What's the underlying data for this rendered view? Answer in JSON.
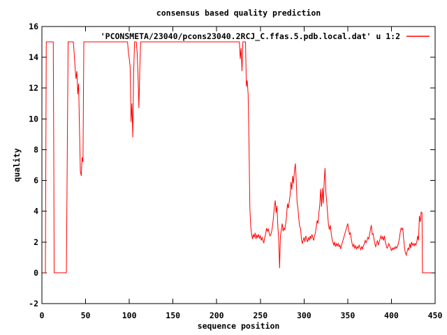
{
  "chart_data": {
    "type": "line",
    "title": "consensus based quality prediction",
    "xlabel": "sequence position",
    "ylabel": "quality",
    "legend": "'PCONSMETA/23040/pcons23040.2RCJ_C.ffas.5.pdb.local.dat' u 1:2",
    "legend_position": "top-right-inside",
    "grid": false,
    "xlim": [
      0,
      450
    ],
    "ylim": [
      -2,
      16
    ],
    "x_ticks": [
      0,
      50,
      100,
      150,
      200,
      250,
      300,
      350,
      400,
      450
    ],
    "y_ticks": [
      -2,
      0,
      2,
      4,
      6,
      8,
      10,
      12,
      14,
      16
    ],
    "line_color": "#ff0000",
    "axis_color": "#000000",
    "background_color": "#ffffff",
    "series": [
      {
        "name": "'PCONSMETA/23040/pcons23040.2RCJ_C.ffas.5.pdb.local.dat' u 1:2",
        "points": [
          [
            1,
            0
          ],
          [
            4,
            0
          ],
          [
            5,
            15
          ],
          [
            13,
            15
          ],
          [
            13.6,
            7.4
          ],
          [
            14,
            0
          ],
          [
            28,
            0
          ],
          [
            29,
            7.5
          ],
          [
            30,
            15
          ],
          [
            36,
            15
          ],
          [
            37,
            14.2
          ],
          [
            38,
            13.3
          ],
          [
            39,
            12.6
          ],
          [
            40,
            13.1
          ],
          [
            41,
            11.6
          ],
          [
            42,
            12.3
          ],
          [
            43,
            9.4
          ],
          [
            44,
            6.6
          ],
          [
            45,
            6.3
          ],
          [
            46,
            7.5
          ],
          [
            47,
            7.2
          ],
          [
            48,
            15
          ],
          [
            98,
            15
          ],
          [
            99,
            14.3
          ],
          [
            100,
            13.9
          ],
          [
            101,
            13.4
          ],
          [
            102,
            9.8
          ],
          [
            103,
            11
          ],
          [
            104,
            8.8
          ],
          [
            105,
            13
          ],
          [
            106,
            15
          ],
          [
            108,
            15
          ],
          [
            109,
            14.3
          ],
          [
            110,
            12.8
          ],
          [
            111,
            10.7
          ],
          [
            112,
            13.2
          ],
          [
            113,
            15
          ],
          [
            226,
            15
          ],
          [
            227,
            13.9
          ],
          [
            228,
            14.6
          ],
          [
            229,
            13.1
          ],
          [
            230,
            15
          ],
          [
            233,
            15
          ],
          [
            234,
            12.1
          ],
          [
            235,
            12.5
          ],
          [
            236,
            11.6
          ],
          [
            237,
            8.4
          ],
          [
            238,
            4.2
          ],
          [
            239,
            3
          ],
          [
            240,
            2.5
          ],
          [
            241,
            2.2
          ],
          [
            242,
            2.5
          ],
          [
            243,
            2.3
          ],
          [
            244,
            2.6
          ],
          [
            245,
            2.2
          ],
          [
            246,
            2.45
          ],
          [
            247,
            2.3
          ],
          [
            248,
            2.5
          ],
          [
            249,
            2.25
          ],
          [
            250,
            2.4
          ],
          [
            251,
            2.1
          ],
          [
            252,
            2.3
          ],
          [
            253,
            2.1
          ],
          [
            254,
            1.95
          ],
          [
            255,
            2.3
          ],
          [
            256,
            2.5
          ],
          [
            257,
            2.9
          ],
          [
            258,
            2.7
          ],
          [
            259,
            2.85
          ],
          [
            260,
            2.6
          ],
          [
            261,
            2.4
          ],
          [
            262,
            2.5
          ],
          [
            263,
            2.7
          ],
          [
            264,
            3.1
          ],
          [
            265,
            3.6
          ],
          [
            266,
            4.3
          ],
          [
            267,
            4.7
          ],
          [
            268,
            3.9
          ],
          [
            269,
            4.35
          ],
          [
            270,
            3
          ],
          [
            271,
            2.2
          ],
          [
            272,
            0.3
          ],
          [
            273,
            2.4
          ],
          [
            274,
            2.8
          ],
          [
            275,
            3.2
          ],
          [
            276,
            2.7
          ],
          [
            277,
            2.9
          ],
          [
            278,
            2.8
          ],
          [
            279,
            3.2
          ],
          [
            280,
            3.7
          ],
          [
            281,
            4.5
          ],
          [
            282,
            4.2
          ],
          [
            283,
            4.6
          ],
          [
            284,
            5
          ],
          [
            285,
            5.9
          ],
          [
            286,
            5.4
          ],
          [
            287,
            6.3
          ],
          [
            288,
            5.8
          ],
          [
            289,
            6.6
          ],
          [
            290,
            7.1
          ],
          [
            291,
            6.1
          ],
          [
            292,
            4.6
          ],
          [
            293,
            4.2
          ],
          [
            294,
            3.5
          ],
          [
            295,
            3
          ],
          [
            296,
            2.9
          ],
          [
            297,
            2.2
          ],
          [
            298,
            1.9
          ],
          [
            299,
            2.1
          ],
          [
            300,
            2.3
          ],
          [
            301,
            2
          ],
          [
            302,
            2.4
          ],
          [
            303,
            2.2
          ],
          [
            304,
            2
          ],
          [
            305,
            2.3
          ],
          [
            306,
            2.1
          ],
          [
            307,
            2.4
          ],
          [
            308,
            2.2
          ],
          [
            309,
            2.5
          ],
          [
            310,
            2.3
          ],
          [
            311,
            2.1
          ],
          [
            312,
            2.4
          ],
          [
            313,
            2.6
          ],
          [
            314,
            3
          ],
          [
            315,
            3.4
          ],
          [
            316,
            3.2
          ],
          [
            317,
            3.9
          ],
          [
            318,
            4.4
          ],
          [
            319,
            5.45
          ],
          [
            320,
            4.3
          ],
          [
            321,
            5.5
          ],
          [
            322,
            4.5
          ],
          [
            323,
            5.9
          ],
          [
            324,
            6.8
          ],
          [
            325,
            5.2
          ],
          [
            326,
            4.6
          ],
          [
            327,
            3.8
          ],
          [
            328,
            3.1
          ],
          [
            329,
            2.8
          ],
          [
            330,
            3.1
          ],
          [
            331,
            2.6
          ],
          [
            332,
            2.2
          ],
          [
            333,
            2
          ],
          [
            334,
            1.8
          ],
          [
            335,
            2
          ],
          [
            336,
            1.7
          ],
          [
            337,
            1.9
          ],
          [
            338,
            1.75
          ],
          [
            339,
            1.9
          ],
          [
            340,
            1.7
          ],
          [
            341,
            1.8
          ],
          [
            342,
            1.55
          ],
          [
            343,
            1.8
          ],
          [
            344,
            2
          ],
          [
            345,
            2.2
          ],
          [
            346,
            2.4
          ],
          [
            347,
            2.6
          ],
          [
            348,
            2.8
          ],
          [
            349,
            3
          ],
          [
            350,
            3.2
          ],
          [
            351,
            2.8
          ],
          [
            352,
            2.5
          ],
          [
            353,
            2.6
          ],
          [
            354,
            2.2
          ],
          [
            355,
            1.9
          ],
          [
            356,
            1.7
          ],
          [
            357,
            1.85
          ],
          [
            358,
            1.6
          ],
          [
            359,
            1.75
          ],
          [
            360,
            1.55
          ],
          [
            361,
            1.7
          ],
          [
            362,
            1.6
          ],
          [
            363,
            1.8
          ],
          [
            364,
            1.65
          ],
          [
            365,
            1.5
          ],
          [
            366,
            1.7
          ],
          [
            367,
            1.55
          ],
          [
            368,
            1.75
          ],
          [
            369,
            1.9
          ],
          [
            370,
            2.1
          ],
          [
            371,
            1.95
          ],
          [
            372,
            2.1
          ],
          [
            373,
            2.3
          ],
          [
            374,
            2.2
          ],
          [
            375,
            2.5
          ],
          [
            376,
            2.8
          ],
          [
            377,
            3.1
          ],
          [
            378,
            2.5
          ],
          [
            379,
            2.55
          ],
          [
            380,
            2.2
          ],
          [
            381,
            1.9
          ],
          [
            382,
            1.7
          ],
          [
            383,
            1.9
          ],
          [
            384,
            2.1
          ],
          [
            385,
            1.8
          ],
          [
            386,
            2
          ],
          [
            387,
            2.2
          ],
          [
            388,
            2.4
          ],
          [
            389,
            2.2
          ],
          [
            390,
            2.35
          ],
          [
            391,
            2.1
          ],
          [
            392,
            2.4
          ],
          [
            393,
            2
          ],
          [
            394,
            1.8
          ],
          [
            395,
            1.6
          ],
          [
            396,
            1.7
          ],
          [
            397,
            1.9
          ],
          [
            398,
            1.75
          ],
          [
            399,
            1.6
          ],
          [
            400,
            1.45
          ],
          [
            401,
            1.6
          ],
          [
            402,
            1.5
          ],
          [
            403,
            1.65
          ],
          [
            404,
            1.55
          ],
          [
            405,
            1.7
          ],
          [
            406,
            1.6
          ],
          [
            407,
            1.75
          ],
          [
            408,
            1.9
          ],
          [
            409,
            2.2
          ],
          [
            410,
            2.6
          ],
          [
            411,
            2.9
          ],
          [
            412,
            2.8
          ],
          [
            413,
            2.9
          ],
          [
            414,
            2.2
          ],
          [
            415,
            1.6
          ],
          [
            416,
            1.3
          ],
          [
            417,
            1.15
          ],
          [
            418,
            1.4
          ],
          [
            419,
            1.6
          ],
          [
            420,
            1.5
          ],
          [
            421,
            1.9
          ],
          [
            422,
            1.6
          ],
          [
            423,
            2
          ],
          [
            424,
            1.8
          ],
          [
            425,
            1.9
          ],
          [
            426,
            1.75
          ],
          [
            427,
            1.9
          ],
          [
            428,
            1.8
          ],
          [
            429,
            2
          ],
          [
            430,
            2.4
          ],
          [
            431,
            2.1
          ],
          [
            432,
            3.7
          ],
          [
            433,
            3.3
          ],
          [
            434,
            3.95
          ],
          [
            435,
            3.9
          ],
          [
            435.5,
            0
          ],
          [
            446,
            0
          ]
        ]
      }
    ]
  }
}
